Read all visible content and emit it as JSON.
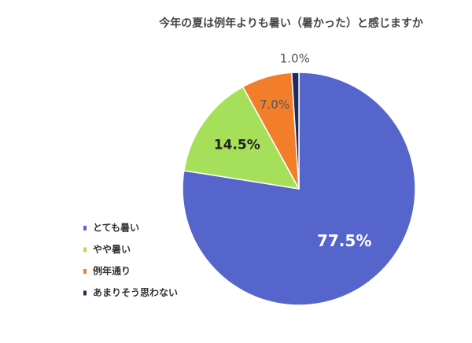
{
  "chart_data": {
    "type": "pie",
    "title": "今年の夏は例年よりも暑い（暑かった）と感じますか",
    "categories": [
      "とても暑い",
      "やや暑い",
      "例年通り",
      "あまりそう思わない"
    ],
    "values": [
      77.5,
      14.5,
      7.0,
      1.0
    ],
    "value_labels": [
      "77.5%",
      "14.5%",
      "7.0%",
      "1.0%"
    ],
    "colors": [
      "#5565cc",
      "#a6e05a",
      "#f27e2b",
      "#1e2b5f"
    ]
  }
}
